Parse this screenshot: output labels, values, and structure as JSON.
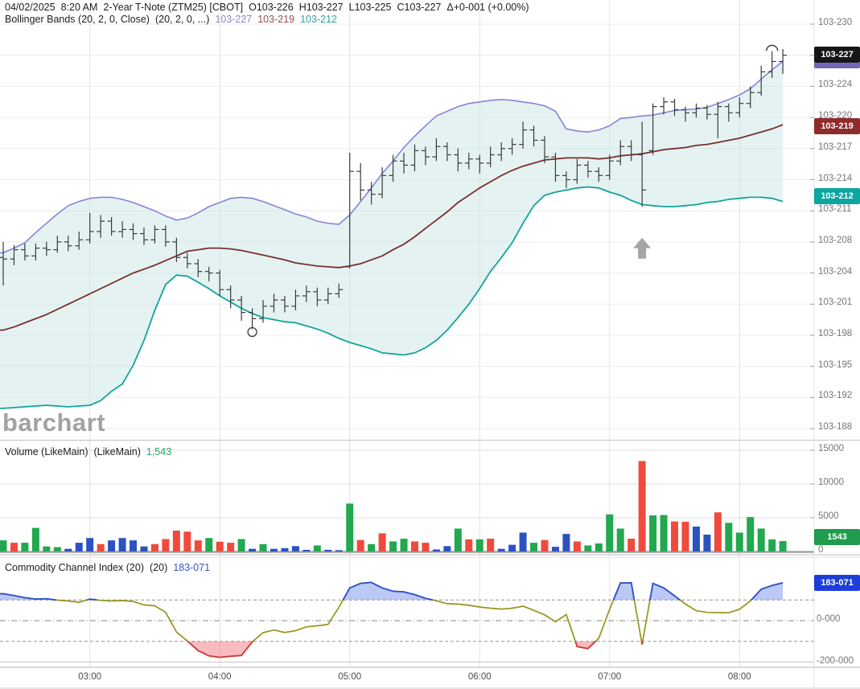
{
  "header": {
    "date": "04/02/2025",
    "time": "8:20 AM",
    "instrument": "2-Year T-Note (ZTM25) [CBOT]",
    "open": "O103-226",
    "high": "H103-227",
    "low": "L103-225",
    "close": "C103-227",
    "change": "Δ+0-001 (+0.00%)"
  },
  "legends": {
    "bollinger": {
      "label": "Bollinger Bands (20, 2, 0, Close)",
      "params": "(20, 2, 0, ...)",
      "upper_value": "103-227",
      "middle_value": "103-219",
      "lower_value": "103-212"
    },
    "volume": {
      "label": "Volume (LikeMain)",
      "params": "(LikeMain)",
      "value": "1,543"
    },
    "cci": {
      "label": "Commodity Channel Index (20)",
      "params": "(20)",
      "value": "183-071"
    }
  },
  "watermark": "barchart",
  "badges": {
    "last_price": "103-227",
    "bb_middle": "103-219",
    "bb_lower": "103-212",
    "volume": "1543",
    "cci": "183-071"
  },
  "axes": {
    "price_ticks": [
      {
        "label": "103-230",
        "code": 230
      },
      {
        "label": "103-227",
        "code": 227
      },
      {
        "label": "103-224",
        "code": 224
      },
      {
        "label": "103-220",
        "code": 220
      },
      {
        "label": "103-217",
        "code": 217
      },
      {
        "label": "103-214",
        "code": 214
      },
      {
        "label": "103-211",
        "code": 211
      },
      {
        "label": "103-208",
        "code": 208
      },
      {
        "label": "103-204",
        "code": 204
      },
      {
        "label": "103-201",
        "code": 201
      },
      {
        "label": "103-198",
        "code": 198
      },
      {
        "label": "103-195",
        "code": 195
      },
      {
        "label": "103-192",
        "code": 192
      },
      {
        "label": "103-188",
        "code": 188
      }
    ],
    "volume_ticks": [
      {
        "label": "15000",
        "value": 15000
      },
      {
        "label": "10000",
        "value": 10000
      },
      {
        "label": "5000",
        "value": 5000
      },
      {
        "label": "0",
        "value": 0
      }
    ],
    "cci_ticks": [
      {
        "label": "0-000",
        "value": 0
      },
      {
        "label": "-200-000",
        "value": -200
      }
    ],
    "time_ticks": [
      {
        "label": "03:00",
        "bar": 8
      },
      {
        "label": "04:00",
        "bar": 20
      },
      {
        "label": "05:00",
        "bar": 32
      },
      {
        "label": "06:00",
        "bar": 44
      },
      {
        "label": "07:00",
        "bar": 56
      },
      {
        "label": "08:00",
        "bar": 68
      }
    ]
  },
  "chart_data": {
    "type": "ohlc-multi-panel",
    "price_format_note": "values are the fractional 32nds code shown on the axis, e.g. 227 = 103-227",
    "bars_ohlc": [
      [
        206.0,
        208.0,
        202.8,
        205.8
      ],
      [
        205.8,
        207.6,
        205.0,
        207.0
      ],
      [
        207.0,
        207.8,
        205.6,
        206.2
      ],
      [
        206.2,
        207.8,
        205.6,
        207.2
      ],
      [
        207.2,
        208.0,
        206.2,
        207.0
      ],
      [
        207.0,
        208.6,
        206.6,
        208.0
      ],
      [
        208.0,
        208.6,
        206.8,
        207.5
      ],
      [
        207.5,
        209.0,
        207.0,
        208.2
      ],
      [
        208.2,
        210.8,
        207.8,
        209.0
      ],
      [
        209.0,
        210.6,
        208.4,
        210.0
      ],
      [
        210.0,
        210.4,
        208.6,
        209.0
      ],
      [
        209.0,
        210.0,
        208.4,
        209.2
      ],
      [
        209.2,
        209.8,
        208.2,
        208.8
      ],
      [
        208.8,
        209.4,
        207.6,
        208.2
      ],
      [
        208.2,
        209.6,
        207.8,
        209.2
      ],
      [
        209.2,
        209.6,
        207.4,
        208.0
      ],
      [
        208.0,
        208.4,
        205.4,
        206.0
      ],
      [
        206.0,
        206.6,
        204.6,
        205.2
      ],
      [
        205.2,
        205.8,
        203.6,
        204.2
      ],
      [
        204.2,
        204.8,
        203.2,
        204.0
      ],
      [
        204.0,
        204.4,
        201.8,
        202.4
      ],
      [
        202.4,
        202.8,
        200.6,
        201.4
      ],
      [
        201.4,
        201.8,
        199.4,
        200.2
      ],
      [
        200.2,
        200.6,
        198.6,
        199.6
      ],
      [
        199.6,
        201.4,
        199.2,
        200.8
      ],
      [
        200.8,
        202.0,
        200.2,
        201.4
      ],
      [
        201.4,
        201.8,
        200.2,
        200.8
      ],
      [
        200.8,
        202.4,
        200.4,
        201.8
      ],
      [
        201.8,
        202.8,
        201.2,
        202.2
      ],
      [
        202.2,
        202.6,
        200.8,
        201.4
      ],
      [
        201.4,
        202.6,
        201.0,
        202.0
      ],
      [
        202.0,
        203.0,
        201.6,
        202.4
      ],
      [
        204.8,
        216.6,
        204.6,
        214.8
      ],
      [
        214.8,
        215.6,
        212.0,
        213.0
      ],
      [
        213.0,
        213.8,
        211.6,
        212.6
      ],
      [
        212.6,
        215.2,
        212.2,
        214.4
      ],
      [
        214.4,
        216.4,
        213.8,
        215.8
      ],
      [
        215.8,
        216.6,
        214.6,
        215.4
      ],
      [
        215.4,
        217.4,
        214.8,
        216.8
      ],
      [
        216.8,
        217.2,
        215.4,
        216.2
      ],
      [
        216.2,
        218.0,
        215.8,
        217.2
      ],
      [
        217.2,
        217.6,
        215.8,
        216.4
      ],
      [
        216.4,
        217.0,
        214.8,
        215.6
      ],
      [
        215.6,
        216.6,
        215.0,
        216.0
      ],
      [
        216.0,
        216.4,
        214.6,
        215.6
      ],
      [
        215.6,
        217.2,
        215.2,
        216.4
      ],
      [
        216.4,
        217.6,
        215.8,
        217.0
      ],
      [
        217.0,
        218.0,
        216.4,
        217.4
      ],
      [
        217.4,
        219.6,
        217.0,
        218.8
      ],
      [
        218.8,
        219.2,
        217.2,
        217.8
      ],
      [
        217.8,
        218.2,
        215.6,
        216.2
      ],
      [
        216.2,
        216.6,
        213.8,
        214.4
      ],
      [
        214.4,
        214.8,
        213.2,
        214.0
      ],
      [
        214.0,
        216.0,
        213.6,
        215.4
      ],
      [
        215.4,
        215.8,
        214.2,
        214.8
      ],
      [
        214.8,
        215.2,
        213.8,
        214.4
      ],
      [
        214.4,
        216.4,
        214.0,
        215.8
      ],
      [
        215.8,
        217.8,
        215.4,
        217.2
      ],
      [
        217.2,
        217.8,
        215.8,
        216.4
      ],
      [
        216.4,
        219.6,
        211.4,
        213.0
      ],
      [
        216.8,
        221.8,
        216.4,
        221.4
      ],
      [
        221.4,
        222.6,
        220.4,
        222.0
      ],
      [
        222.0,
        222.4,
        220.2,
        221.0
      ],
      [
        221.0,
        221.4,
        219.6,
        220.6
      ],
      [
        220.6,
        221.8,
        220.0,
        221.2
      ],
      [
        221.2,
        221.6,
        219.8,
        220.4
      ],
      [
        220.4,
        222.0,
        218.0,
        221.4
      ],
      [
        221.4,
        221.8,
        219.6,
        220.6
      ],
      [
        220.6,
        222.6,
        220.0,
        221.8
      ],
      [
        221.8,
        224.0,
        221.2,
        223.2
      ],
      [
        223.2,
        226.0,
        222.8,
        225.4
      ],
      [
        225.4,
        227.4,
        224.8,
        226.4
      ],
      [
        226.4,
        227.6,
        225.2,
        227.0
      ]
    ],
    "bollinger": {
      "upper": [
        206.6,
        207.2,
        207.9,
        208.9,
        209.8,
        210.7,
        211.5,
        211.9,
        212.2,
        212.3,
        212.3,
        212.1,
        211.8,
        211.4,
        211.0,
        210.5,
        210.1,
        210.3,
        210.8,
        211.4,
        211.8,
        212.2,
        212.3,
        212.2,
        211.9,
        211.5,
        211.1,
        210.7,
        210.4,
        210.0,
        209.8,
        209.7,
        210.6,
        211.9,
        213.2,
        214.6,
        215.8,
        217.1,
        218.2,
        219.2,
        220.2,
        220.8,
        221.4,
        221.8,
        222.0,
        222.2,
        222.3,
        222.2,
        222.0,
        221.8,
        221.5,
        220.8,
        218.9,
        218.7,
        218.6,
        218.8,
        219.2,
        219.9,
        220.0,
        220.2,
        220.3,
        220.6,
        220.9,
        221.0,
        221.1,
        221.3,
        221.8,
        222.3,
        222.9,
        223.7,
        224.7,
        225.6,
        226.4
      ],
      "middle": [
        198.5,
        198.8,
        199.2,
        199.6,
        200.0,
        200.5,
        201.0,
        201.5,
        202.0,
        202.5,
        203.0,
        203.5,
        204.0,
        204.5,
        205.0,
        205.6,
        206.2,
        206.8,
        207.0,
        207.2,
        207.2,
        207.1,
        206.9,
        206.6,
        206.3,
        206.0,
        205.7,
        205.3,
        205.1,
        204.9,
        204.8,
        204.7,
        204.9,
        205.2,
        205.7,
        206.2,
        207.0,
        207.7,
        208.5,
        209.3,
        210.1,
        210.9,
        211.8,
        212.5,
        213.2,
        213.8,
        214.4,
        214.9,
        215.3,
        215.6,
        215.9,
        216.0,
        216.1,
        216.1,
        216.1,
        216.0,
        216.1,
        216.3,
        216.4,
        216.5,
        216.7,
        216.9,
        217.0,
        217.1,
        217.3,
        217.4,
        217.6,
        217.8,
        218.0,
        218.3,
        218.6,
        218.9,
        219.3
      ],
      "lower": [
        190.6,
        190.7,
        190.8,
        190.9,
        191.0,
        190.9,
        190.8,
        190.9,
        191.0,
        191.6,
        192.6,
        193.3,
        195.1,
        197.5,
        200.4,
        202.9,
        203.8,
        203.7,
        203.1,
        202.5,
        201.8,
        201.2,
        200.6,
        200.1,
        199.7,
        199.5,
        199.3,
        199.2,
        198.9,
        198.6,
        198.2,
        197.7,
        197.3,
        197.0,
        196.7,
        196.3,
        196.2,
        196.1,
        196.3,
        196.8,
        197.5,
        198.5,
        199.7,
        201.0,
        202.5,
        204.2,
        206.0,
        207.9,
        209.8,
        211.5,
        212.5,
        212.8,
        213.0,
        213.2,
        213.3,
        213.2,
        212.8,
        212.5,
        212.0,
        211.6,
        211.5,
        211.4,
        211.4,
        211.5,
        211.6,
        211.8,
        211.9,
        212.1,
        212.2,
        212.3,
        212.3,
        212.2,
        211.9
      ]
    },
    "volume": {
      "values": [
        1650,
        1300,
        1300,
        3500,
        750,
        650,
        400,
        1300,
        2000,
        1100,
        1650,
        2000,
        1650,
        750,
        1100,
        1850,
        3100,
        2950,
        1650,
        2000,
        1450,
        1300,
        1850,
        400,
        1100,
        400,
        500,
        800,
        250,
        900,
        250,
        200,
        7100,
        1700,
        1100,
        2700,
        1500,
        1900,
        1500,
        1300,
        300,
        800,
        3400,
        1800,
        1800,
        1900,
        400,
        1000,
        2800,
        1300,
        1700,
        700,
        2600,
        1500,
        900,
        1200,
        5500,
        3400,
        1900,
        13400,
        5350,
        5400,
        4450,
        4400,
        3700,
        2500,
        5800,
        4250,
        2800,
        5100,
        3400,
        1800,
        1543
      ],
      "colors": [
        "g",
        "r",
        "g",
        "g",
        "g",
        "g",
        "b",
        "b",
        "b",
        "r",
        "b",
        "b",
        "b",
        "b",
        "r",
        "r",
        "r",
        "r",
        "r",
        "g",
        "r",
        "r",
        "g",
        "b",
        "g",
        "b",
        "b",
        "b",
        "b",
        "g",
        "b",
        "b",
        "g",
        "r",
        "g",
        "r",
        "g",
        "g",
        "r",
        "r",
        "b",
        "b",
        "g",
        "r",
        "g",
        "r",
        "b",
        "b",
        "b",
        "g",
        "r",
        "b",
        "b",
        "r",
        "g",
        "g",
        "g",
        "g",
        "r",
        "r",
        "g",
        "g",
        "r",
        "r",
        "b",
        "b",
        "r",
        "g",
        "g",
        "g",
        "g",
        "g",
        "g"
      ]
    },
    "cci": {
      "overbought": 100,
      "oversold": -100,
      "values": [
        130,
        121,
        111,
        104,
        106,
        99,
        95,
        89,
        104,
        98,
        95,
        97,
        93,
        76,
        72,
        40,
        -55,
        -98,
        -145,
        -170,
        -177,
        -172,
        -168,
        -102,
        -58,
        -45,
        -57,
        -48,
        -30,
        -25,
        -18,
        65,
        158,
        180,
        185,
        158,
        142,
        139,
        126,
        108,
        96,
        82,
        80,
        74,
        66,
        60,
        56,
        60,
        70,
        50,
        28,
        -5,
        30,
        -125,
        -135,
        -85,
        55,
        182,
        183,
        -115,
        180,
        158,
        120,
        80,
        48,
        40,
        39,
        38,
        55,
        95,
        152,
        170,
        183
      ]
    },
    "markers": [
      {
        "type": "circle",
        "bar": 23,
        "price": 198.7
      },
      {
        "type": "arc",
        "bar": 71,
        "price": 227.8
      },
      {
        "type": "arrow-up",
        "bar": 59,
        "price": 208.4
      }
    ]
  },
  "colors": {
    "bb_upper": "#8784d7",
    "bb_middle": "#7a2f2f",
    "bb_lower": "#12a49e",
    "band_fill": "#bfe3df",
    "bar_color": "#3a3a3a",
    "vol_up": "#22a84e",
    "vol_down": "#f04a3c",
    "vol_neutral": "#2b52c0",
    "cci_line": "#97941c",
    "cci_above": "#2b50cc",
    "cci_above_fill": "#7a92eb",
    "cci_below": "#cf3a3c",
    "cci_below_fill": "#f27880",
    "arrow": "#a5a5a5",
    "grid_v": "#e2e2e2",
    "grid_h": "#ececec",
    "separator": "#bdbdbd",
    "axis_text": "#757575"
  }
}
